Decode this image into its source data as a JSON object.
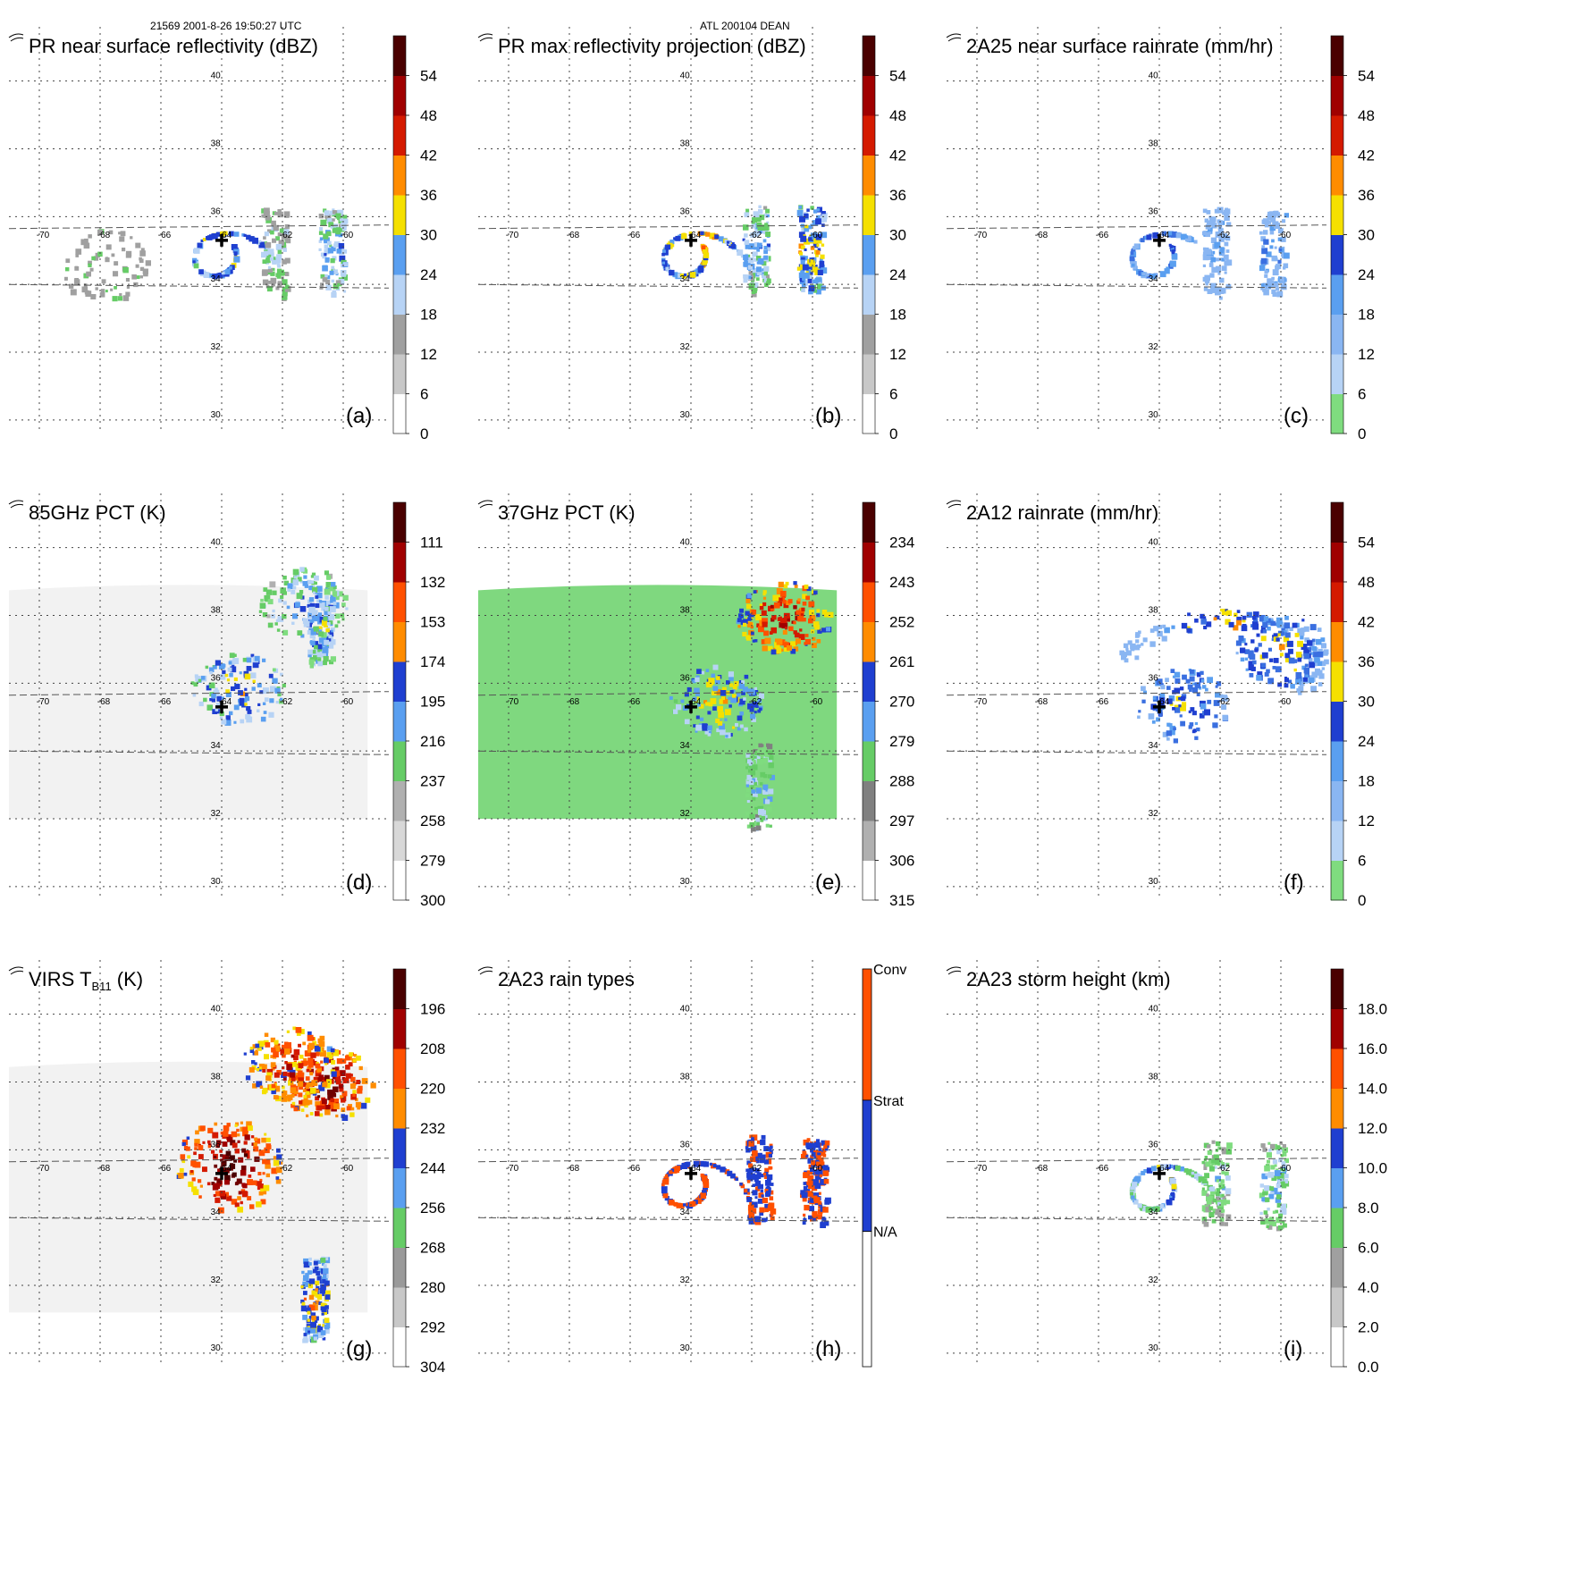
{
  "header": {
    "left": "21569 2001-8-26 19:50:27 UTC",
    "center": "ATL 200104 DEAN"
  },
  "map_ticks": {
    "lon": [
      -70,
      -68,
      -66,
      -64,
      -62,
      -60
    ],
    "lat": [
      30,
      32,
      34,
      36,
      38,
      40
    ],
    "lon_labels": [
      "-70",
      "-68",
      "-66",
      "-64",
      "-62",
      "-60"
    ],
    "lat_labels": [
      "30",
      "32",
      "34",
      "36",
      "38",
      "40"
    ]
  },
  "storm_center": {
    "lon": -64.0,
    "lat": 35.3
  },
  "chart_data": [
    {
      "type": "heatmap",
      "id": "a",
      "panel_label": "(a)",
      "title": "PR near surface reflectivity (dBZ)",
      "swath": "pr",
      "palette": "dbz",
      "colorbar": {
        "ticks": [
          "0",
          "6",
          "12",
          "18",
          "24",
          "30",
          "36",
          "42",
          "48",
          "54"
        ]
      },
      "features": [
        {
          "kind": "spiral",
          "lon": -63.9,
          "lat": 35.2,
          "intensity": 0.55
        },
        {
          "kind": "band",
          "lon": -60.4,
          "lat": 35.0,
          "intensity": 0.4
        },
        {
          "kind": "band",
          "lon": -62.3,
          "lat": 35.1,
          "intensity": 0.3
        },
        {
          "kind": "blob",
          "lon": -67.9,
          "lat": 34.6,
          "intensity": 0.25
        }
      ]
    },
    {
      "type": "heatmap",
      "id": "b",
      "panel_label": "(b)",
      "title": "PR max reflectivity projection (dBZ)",
      "swath": "pr",
      "palette": "dbz",
      "colorbar": {
        "ticks": [
          "0",
          "6",
          "12",
          "18",
          "24",
          "30",
          "36",
          "42",
          "48",
          "54"
        ]
      },
      "features": [
        {
          "kind": "spiral",
          "lon": -63.9,
          "lat": 35.2,
          "intensity": 0.6
        },
        {
          "kind": "band",
          "lon": -60.1,
          "lat": 35.1,
          "intensity": 0.55
        },
        {
          "kind": "band",
          "lon": -61.9,
          "lat": 35.2,
          "intensity": 0.4
        }
      ]
    },
    {
      "type": "heatmap",
      "id": "c",
      "panel_label": "(c)",
      "title": "2A25 near surface rainrate (mm/hr)",
      "swath": "pr",
      "palette": "rain",
      "colorbar": {
        "ticks": [
          "0",
          "6",
          "12",
          "18",
          "24",
          "30",
          "36",
          "42",
          "48",
          "54"
        ]
      },
      "features": [
        {
          "kind": "spiral",
          "lon": -63.9,
          "lat": 35.2,
          "intensity": 0.4
        },
        {
          "kind": "band",
          "lon": -60.3,
          "lat": 35.0,
          "intensity": 0.3
        },
        {
          "kind": "band",
          "lon": -62.2,
          "lat": 35.1,
          "intensity": 0.25
        }
      ]
    },
    {
      "type": "heatmap",
      "id": "d",
      "panel_label": "(d)",
      "title": "85GHz PCT (K)",
      "swath": "tmi",
      "palette": "pct85",
      "colorbar": {
        "ticks": [
          "300",
          "279",
          "258",
          "237",
          "216",
          "195",
          "174",
          "153",
          "132",
          "111"
        ]
      },
      "features": [
        {
          "kind": "blob",
          "lon": -63.5,
          "lat": 35.9,
          "intensity": 0.55
        },
        {
          "kind": "band",
          "lon": -60.8,
          "lat": 37.8,
          "intensity": 0.5
        },
        {
          "kind": "blob",
          "lon": -61.3,
          "lat": 38.4,
          "intensity": 0.45
        }
      ]
    },
    {
      "type": "heatmap",
      "id": "e",
      "panel_label": "(e)",
      "title": "37GHz PCT (K)",
      "swath": "tmi",
      "palette": "pct37",
      "colorbar": {
        "ticks": [
          "315",
          "306",
          "297",
          "288",
          "279",
          "270",
          "261",
          "252",
          "243",
          "234"
        ]
      },
      "features": [
        {
          "kind": "blob",
          "lon": -61.0,
          "lat": 38.0,
          "intensity": 0.8
        },
        {
          "kind": "blob",
          "lon": -63.2,
          "lat": 35.5,
          "intensity": 0.6
        },
        {
          "kind": "band",
          "lon": -61.8,
          "lat": 33.0,
          "intensity": 0.4
        }
      ]
    },
    {
      "type": "heatmap",
      "id": "f",
      "panel_label": "(f)",
      "title": "2A12 rainrate (mm/hr)",
      "swath": "tmi",
      "palette": "rain",
      "colorbar": {
        "ticks": [
          "0",
          "6",
          "12",
          "18",
          "24",
          "30",
          "36",
          "42",
          "48",
          "54"
        ]
      },
      "features": [
        {
          "kind": "arc",
          "lon": -62.0,
          "lat": 37.7,
          "intensity": 0.55
        },
        {
          "kind": "blob",
          "lon": -63.3,
          "lat": 35.4,
          "intensity": 0.45
        },
        {
          "kind": "blob",
          "lon": -60.0,
          "lat": 37.0,
          "intensity": 0.5
        }
      ]
    },
    {
      "type": "heatmap",
      "id": "g",
      "panel_label": "(g)",
      "title_main": "VIRS T",
      "title_sub": "B11",
      "title_tail": " (K)",
      "swath": "virs",
      "palette": "virs",
      "colorbar": {
        "ticks": [
          "304",
          "292",
          "280",
          "268",
          "256",
          "244",
          "232",
          "220",
          "208",
          "196"
        ]
      },
      "features": [
        {
          "kind": "disk",
          "lon": -63.8,
          "lat": 35.6,
          "intensity": 0.95
        },
        {
          "kind": "blob",
          "lon": -60.6,
          "lat": 38.0,
          "intensity": 0.85
        },
        {
          "kind": "blob",
          "lon": -61.8,
          "lat": 38.6,
          "intensity": 0.8
        },
        {
          "kind": "band",
          "lon": -61.0,
          "lat": 31.6,
          "intensity": 0.6
        }
      ]
    },
    {
      "type": "heatmap",
      "id": "h",
      "panel_label": "(h)",
      "title": "2A23 rain types",
      "swath": "pr",
      "palette": "raintype",
      "colorbar": {
        "labels": [
          "Conv",
          "Strat",
          "N/A"
        ]
      },
      "features": [
        {
          "kind": "spiral",
          "lon": -63.9,
          "lat": 35.3,
          "intensity": 0.7
        },
        {
          "kind": "band",
          "lon": -60.0,
          "lat": 35.1,
          "intensity": 0.6
        },
        {
          "kind": "band",
          "lon": -61.8,
          "lat": 35.2,
          "intensity": 0.5
        }
      ]
    },
    {
      "type": "heatmap",
      "id": "i",
      "panel_label": "(i)",
      "title": "2A23 storm height (km)",
      "swath": "pr",
      "palette": "height",
      "colorbar": {
        "ticks": [
          "0.0",
          "2.0",
          "4.0",
          "6.0",
          "8.0",
          "10.0",
          "12.0",
          "14.0",
          "16.0",
          "18.0"
        ]
      },
      "features": [
        {
          "kind": "spiral",
          "lon": -63.9,
          "lat": 35.2,
          "intensity": 0.5
        },
        {
          "kind": "band",
          "lon": -60.3,
          "lat": 35.0,
          "intensity": 0.4
        },
        {
          "kind": "band",
          "lon": -62.2,
          "lat": 35.1,
          "intensity": 0.35
        }
      ]
    }
  ]
}
